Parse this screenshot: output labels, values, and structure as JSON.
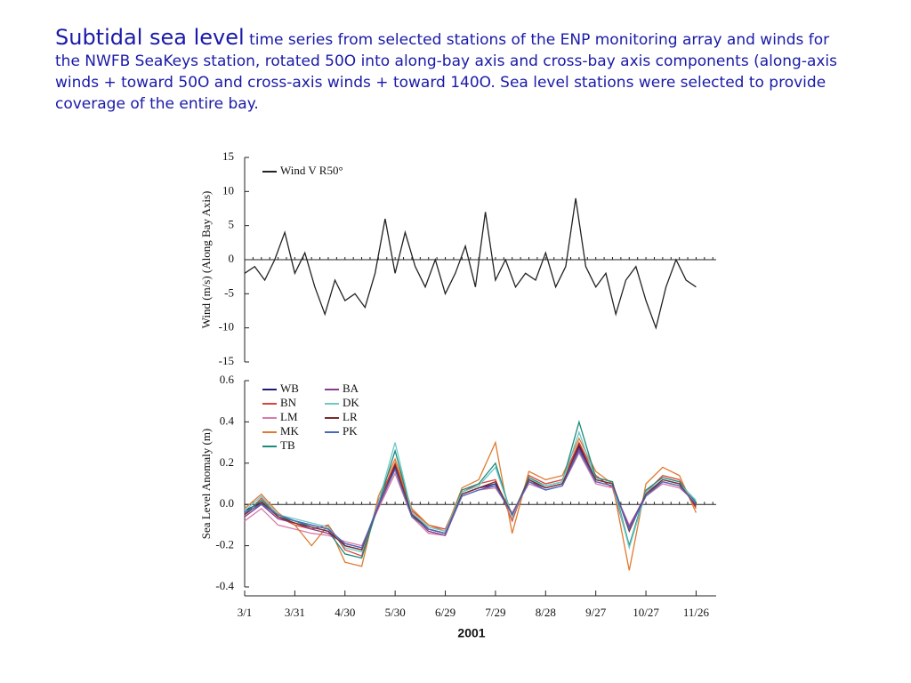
{
  "caption": {
    "heading": "Subtidal sea level",
    "text": "time series from selected stations of the ENP monitoring array and winds for the NWFB SeaKeys station, rotated 50O into along-bay axis and cross-bay axis components (along-axis winds + toward 50O and cross-axis winds + toward 140O. Sea level stations were selected to provide coverage of the entire bay."
  },
  "chart_data": [
    {
      "type": "line",
      "ylabel": "Wind (m/s) (Along Bay Axis)",
      "x": [
        0,
        6,
        12,
        18,
        24,
        30,
        36,
        42,
        48,
        54,
        60,
        66,
        72,
        78,
        84,
        90,
        96,
        102,
        108,
        114,
        120,
        126,
        132,
        138,
        144,
        150,
        156,
        162,
        168,
        174,
        180,
        186,
        192,
        198,
        204,
        210,
        216,
        222,
        228,
        234,
        240,
        246,
        252,
        258,
        264,
        270
      ],
      "series": [
        {
          "name": "Wind V R50°",
          "color": "#222222",
          "values": [
            -2,
            -1,
            -3,
            0,
            4,
            -2,
            1,
            -4,
            -8,
            -3,
            -6,
            -5,
            -7,
            -2,
            6,
            -2,
            4,
            -1,
            -4,
            0,
            -5,
            -2,
            2,
            -4,
            7,
            -3,
            0,
            -4,
            -2,
            -3,
            1,
            -4,
            -1,
            9,
            -1,
            -4,
            -2,
            -8,
            -3,
            -1,
            -6,
            -10,
            -4,
            0,
            -3,
            -4
          ]
        }
      ],
      "xlim": [
        0,
        282
      ],
      "ylim": [
        -15,
        15
      ],
      "yticks": [
        -15,
        -10,
        -5,
        0,
        5,
        10,
        15
      ]
    },
    {
      "type": "line",
      "xlabel": "2001",
      "ylabel": "Sea Level Anomaly (m)",
      "x": [
        0,
        10,
        20,
        30,
        40,
        50,
        60,
        70,
        80,
        90,
        100,
        110,
        120,
        130,
        140,
        150,
        160,
        170,
        180,
        190,
        200,
        210,
        220,
        230,
        240,
        250,
        260,
        270
      ],
      "series": [
        {
          "name": "WB",
          "color": "#1c1c78",
          "values": [
            -0.03,
            0.01,
            -0.05,
            -0.08,
            -0.1,
            -0.12,
            -0.2,
            -0.22,
            0.0,
            0.18,
            -0.05,
            -0.12,
            -0.14,
            0.05,
            0.08,
            0.1,
            -0.05,
            0.12,
            0.08,
            0.1,
            0.28,
            0.12,
            0.1,
            -0.12,
            0.05,
            0.12,
            0.1,
            0.0
          ]
        },
        {
          "name": "BN",
          "color": "#d8443a",
          "values": [
            -0.05,
            0.03,
            -0.06,
            -0.1,
            -0.12,
            -0.1,
            -0.22,
            -0.25,
            0.02,
            0.2,
            -0.03,
            -0.1,
            -0.12,
            0.06,
            0.1,
            0.12,
            -0.08,
            0.14,
            0.1,
            0.12,
            0.3,
            0.14,
            0.08,
            -0.2,
            0.06,
            0.14,
            0.12,
            -0.02
          ]
        },
        {
          "name": "LM",
          "color": "#d87aa8",
          "values": [
            -0.08,
            -0.02,
            -0.1,
            -0.12,
            -0.14,
            -0.15,
            -0.18,
            -0.2,
            -0.02,
            0.15,
            -0.06,
            -0.14,
            -0.15,
            0.04,
            0.07,
            0.08,
            -0.04,
            0.1,
            0.07,
            0.09,
            0.25,
            0.1,
            0.08,
            -0.1,
            0.04,
            0.1,
            0.08,
            0.01
          ]
        },
        {
          "name": "MK",
          "color": "#e07a30",
          "values": [
            -0.02,
            0.05,
            -0.04,
            -0.1,
            -0.2,
            -0.1,
            -0.28,
            -0.3,
            0.04,
            0.22,
            -0.02,
            -0.1,
            -0.13,
            0.08,
            0.12,
            0.3,
            -0.14,
            0.16,
            0.12,
            0.14,
            0.32,
            0.16,
            0.1,
            -0.32,
            0.1,
            0.18,
            0.14,
            -0.04
          ]
        },
        {
          "name": "TB",
          "color": "#1b8a7a",
          "values": [
            -0.04,
            0.02,
            -0.06,
            -0.08,
            -0.11,
            -0.13,
            -0.24,
            -0.26,
            0.0,
            0.26,
            -0.04,
            -0.12,
            -0.14,
            0.07,
            0.1,
            0.2,
            -0.06,
            0.13,
            0.09,
            0.11,
            0.4,
            0.13,
            0.11,
            -0.2,
            0.07,
            0.13,
            0.11,
            0.01
          ]
        },
        {
          "name": "BA",
          "color": "#8a3a8a",
          "values": [
            -0.06,
            0.0,
            -0.07,
            -0.09,
            -0.12,
            -0.14,
            -0.19,
            -0.21,
            -0.01,
            0.17,
            -0.05,
            -0.13,
            -0.15,
            0.05,
            0.08,
            0.09,
            -0.05,
            0.11,
            0.08,
            0.1,
            0.27,
            0.11,
            0.09,
            -0.11,
            0.05,
            0.11,
            0.09,
            0.0
          ]
        },
        {
          "name": "DK",
          "color": "#6cc8c8",
          "values": [
            -0.03,
            0.04,
            -0.05,
            -0.07,
            -0.09,
            -0.11,
            -0.21,
            -0.23,
            0.01,
            0.3,
            -0.04,
            -0.11,
            -0.13,
            0.06,
            0.09,
            0.18,
            -0.06,
            0.12,
            0.09,
            0.11,
            0.35,
            0.12,
            0.1,
            -0.21,
            0.06,
            0.12,
            0.1,
            0.02
          ]
        },
        {
          "name": "LR",
          "color": "#7a2a2a",
          "values": [
            -0.05,
            0.01,
            -0.06,
            -0.09,
            -0.11,
            -0.13,
            -0.2,
            -0.22,
            0.0,
            0.19,
            -0.05,
            -0.12,
            -0.14,
            0.05,
            0.08,
            0.11,
            -0.05,
            0.12,
            0.08,
            0.1,
            0.29,
            0.12,
            0.1,
            -0.13,
            0.05,
            0.12,
            0.1,
            -0.01
          ]
        },
        {
          "name": "PK",
          "color": "#4a6ab8",
          "values": [
            -0.04,
            0.0,
            -0.05,
            -0.08,
            -0.1,
            -0.12,
            -0.19,
            -0.21,
            0.0,
            0.17,
            -0.06,
            -0.12,
            -0.14,
            0.04,
            0.07,
            0.09,
            -0.05,
            0.11,
            0.07,
            0.09,
            0.26,
            0.11,
            0.09,
            -0.12,
            0.04,
            0.11,
            0.09,
            0.0
          ]
        }
      ],
      "xlim": [
        0,
        282
      ],
      "xticks": [
        {
          "value": 0,
          "label": "3/1"
        },
        {
          "value": 30,
          "label": "3/31"
        },
        {
          "value": 60,
          "label": "4/30"
        },
        {
          "value": 90,
          "label": "5/30"
        },
        {
          "value": 120,
          "label": "6/29"
        },
        {
          "value": 150,
          "label": "7/29"
        },
        {
          "value": 180,
          "label": "8/28"
        },
        {
          "value": 210,
          "label": "9/27"
        },
        {
          "value": 240,
          "label": "10/27"
        },
        {
          "value": 270,
          "label": "11/26"
        }
      ],
      "ylim": [
        -0.4,
        0.6
      ],
      "yticks": [
        -0.4,
        -0.2,
        {
          "value": 0,
          "label": "0.0"
        },
        0.2,
        0.4,
        0.6
      ]
    }
  ]
}
